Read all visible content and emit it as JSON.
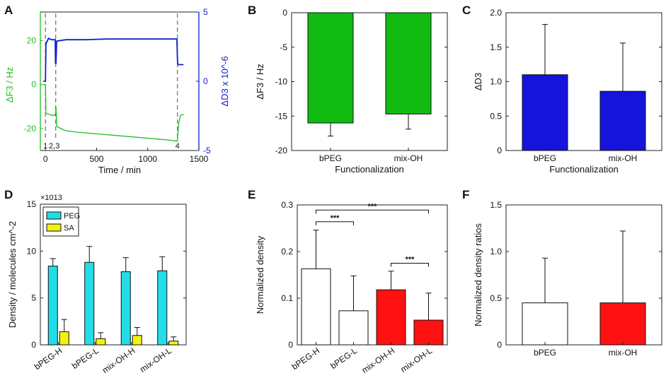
{
  "chart_data": [
    {
      "panel": "A",
      "type": "line",
      "xlabel": "Time / min",
      "ylabel": "ΔF3 / Hz",
      "ylabel_right": "ΔD3 x 10^-6",
      "xlim": [
        -50,
        1500
      ],
      "ylim": [
        -30,
        33
      ],
      "ylim_right": [
        -5,
        5
      ],
      "xticks": [
        "0",
        "500",
        "1000",
        "1500"
      ],
      "yticks": [
        "-20",
        "0",
        "20"
      ],
      "yticks_right": [
        "-5",
        "0",
        "5"
      ],
      "colors": {
        "frequency": "#22bb22",
        "dissipation": "#1020c8",
        "markers": "#808080"
      },
      "events": [
        {
          "x": 0,
          "label": "1"
        },
        {
          "x": 100,
          "label": "2,3"
        },
        {
          "x": 1290,
          "label": "4"
        }
      ],
      "series": [
        {
          "name": "ΔF3",
          "axis": "left",
          "x": [
            -20,
            0,
            5,
            60,
            90,
            100,
            103,
            110,
            150,
            200,
            300,
            400,
            500,
            600,
            700,
            800,
            900,
            1000,
            1100,
            1200,
            1290,
            1292,
            1305,
            1320,
            1350
          ],
          "y": [
            0,
            0,
            -13,
            -14,
            -14,
            -13,
            -10,
            -19,
            -20,
            -21,
            -21.6,
            -22,
            -22.4,
            -22.8,
            -23.2,
            -23.6,
            -24,
            -24.4,
            -24.8,
            -25.2,
            -25.8,
            -24,
            -17,
            -14,
            -13.5
          ]
        },
        {
          "name": "ΔD3",
          "axis": "right",
          "x": [
            -20,
            0,
            5,
            30,
            60,
            95,
            98,
            103,
            110,
            200,
            400,
            600,
            800,
            1000,
            1200,
            1285,
            1292,
            1300,
            1350
          ],
          "y": [
            0,
            0,
            2.7,
            3.1,
            3.0,
            3.0,
            1.3,
            1.3,
            2.9,
            3.0,
            3.0,
            3.05,
            3.05,
            3.05,
            3.05,
            3.05,
            1.3,
            1.2,
            1.2
          ]
        }
      ]
    },
    {
      "panel": "B",
      "type": "bar",
      "categories": [
        "bPEG",
        "mix-OH"
      ],
      "values": [
        -16,
        -14.7
      ],
      "errors": [
        1.9,
        2.2
      ],
      "ylim": [
        -20,
        0
      ],
      "yticks": [
        "-20",
        "-15",
        "-10",
        "-5",
        "0"
      ],
      "xlabel": "Functionalization",
      "ylabel": "ΔF3 / Hz",
      "colors": [
        "#11bb11",
        "#11bb11"
      ]
    },
    {
      "panel": "C",
      "type": "bar",
      "categories": [
        "bPEG",
        "mix-OH"
      ],
      "values": [
        1.1,
        0.86
      ],
      "errors": [
        0.73,
        0.7
      ],
      "ylim": [
        0,
        2
      ],
      "yticks": [
        "0",
        "0.5",
        "1.0",
        "1.5",
        "2.0"
      ],
      "xlabel": "Functionalization",
      "ylabel": "ΔD3",
      "colors": [
        "#1414dc",
        "#1414dc"
      ]
    },
    {
      "panel": "D",
      "type": "bar",
      "categories": [
        "bPEG-H",
        "bPEG-L",
        "mix-OH-H",
        "mix-OH-L"
      ],
      "series": [
        {
          "name": "PEG",
          "values": [
            8.4,
            8.8,
            7.8,
            7.9
          ],
          "errors": [
            0.8,
            1.7,
            1.5,
            1.5
          ],
          "color": "#22dde8"
        },
        {
          "name": "SA",
          "values": [
            1.4,
            0.65,
            1.0,
            0.4
          ],
          "errors": [
            1.3,
            0.65,
            0.85,
            0.45
          ],
          "color": "#f2f212"
        }
      ],
      "ylim": [
        0,
        15
      ],
      "yticks": [
        "0",
        "5",
        "10",
        "15"
      ],
      "exponent": "×10^13",
      "ylabel": "Density / molecules cm^-2"
    },
    {
      "panel": "E",
      "type": "bar",
      "categories": [
        "bPEG-H",
        "bPEG-L",
        "mix-OH-H",
        "mix-OH-L"
      ],
      "values": [
        0.163,
        0.073,
        0.118,
        0.053
      ],
      "errors": [
        0.083,
        0.075,
        0.04,
        0.058
      ],
      "ylim": [
        0,
        0.3
      ],
      "yticks": [
        "0",
        "0.1",
        "0.2",
        "0.3"
      ],
      "ylabel": "Normalized density",
      "colors": [
        "#ffffff",
        "#ffffff",
        "#ff1111",
        "#ff1111"
      ],
      "significance": [
        {
          "from": 0,
          "to": 3,
          "label": "***"
        },
        {
          "from": 0,
          "to": 1,
          "label": "***"
        },
        {
          "from": 2,
          "to": 3,
          "label": "***"
        }
      ]
    },
    {
      "panel": "F",
      "type": "bar",
      "categories": [
        "bPEG",
        "mix-OH"
      ],
      "values": [
        0.45,
        0.45
      ],
      "errors": [
        0.48,
        0.77
      ],
      "ylim": [
        0,
        1.5
      ],
      "yticks": [
        "0",
        "0.5",
        "1.0",
        "1.5"
      ],
      "ylabel": "Normalized density ratios",
      "colors": [
        "#ffffff",
        "#ff1111"
      ]
    }
  ]
}
